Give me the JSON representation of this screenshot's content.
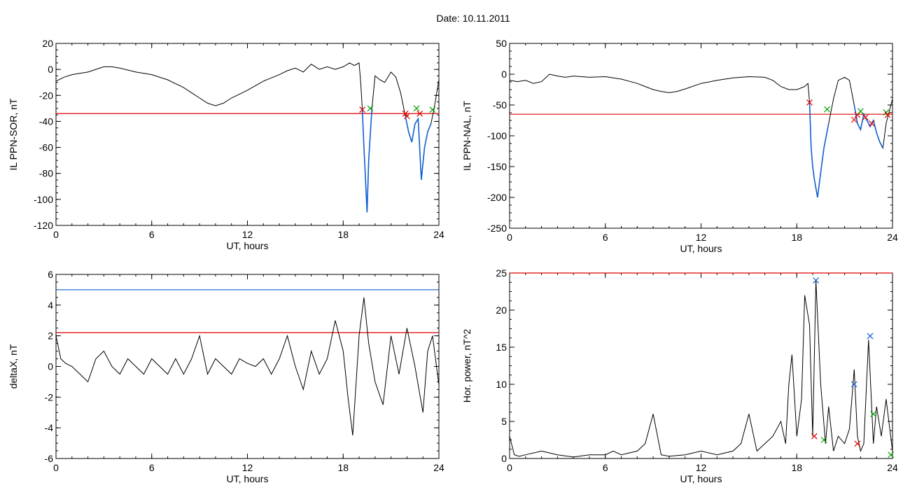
{
  "header": {
    "date_label": "Date:  10.11.2011"
  },
  "chart_data": [
    {
      "type": "line",
      "id": "sor",
      "xlabel": "UT, hours",
      "ylabel": "IL PPN-SOR, nT",
      "xlim": [
        0,
        24
      ],
      "ylim": [
        -120,
        20
      ],
      "xticks": [
        0,
        6,
        12,
        18,
        24
      ],
      "yticks": [
        -120,
        -100,
        -80,
        -60,
        -40,
        -20,
        0,
        20
      ],
      "threshold_lines": [
        {
          "y": -34,
          "color": "#e00000"
        }
      ],
      "series": [
        {
          "color": "#000000",
          "x": [
            0,
            0.5,
            1,
            1.5,
            2,
            2.5,
            3,
            3.5,
            4,
            5,
            6,
            7,
            8,
            8.5,
            9,
            9.5,
            10,
            10.5,
            11,
            12,
            13,
            14,
            14.5,
            15,
            15.5,
            16,
            16.5,
            17,
            17.5,
            18,
            18.4,
            18.7,
            19,
            19.1,
            19.2,
            19.3,
            19.4,
            19.5,
            19.6,
            19.8,
            20,
            20.3,
            20.6,
            21,
            21.3,
            21.6,
            21.9,
            22.1,
            22.3,
            22.5,
            22.7,
            22.9,
            23.1,
            23.3,
            23.5,
            23.7,
            24
          ],
          "values": [
            -9,
            -6,
            -4,
            -3,
            -2,
            0,
            2,
            2,
            1,
            -2,
            -4,
            -8,
            -14,
            -18,
            -22,
            -26,
            -28,
            -26,
            -22,
            -16,
            -9,
            -4,
            -1,
            1,
            -2,
            4,
            0,
            2,
            0,
            2,
            5,
            3,
            5,
            -10,
            -31,
            -60,
            -85,
            -110,
            -70,
            -30,
            -5,
            -8,
            -10,
            -2,
            -6,
            -18,
            -36,
            -48,
            -56,
            -42,
            -38,
            -85,
            -60,
            -48,
            -42,
            -30,
            -8
          ]
        }
      ],
      "highlight_segments": [
        {
          "color": "#1060d0",
          "x": [
            19.2,
            19.3,
            19.4,
            19.5,
            19.6,
            19.8
          ],
          "values": [
            -31,
            -60,
            -85,
            -110,
            -70,
            -30
          ]
        },
        {
          "color": "#1060d0",
          "x": [
            21.9,
            22.1,
            22.3,
            22.5,
            22.7,
            22.9,
            23.1,
            23.3,
            23.5
          ],
          "values": [
            -36,
            -48,
            -56,
            -42,
            -38,
            -85,
            -60,
            -48,
            -42
          ]
        }
      ],
      "markers": [
        {
          "x": 19.2,
          "y": -31,
          "color": "#e00000"
        },
        {
          "x": 19.7,
          "y": -30,
          "color": "#00a000"
        },
        {
          "x": 21.9,
          "y": -34,
          "color": "#e00000"
        },
        {
          "x": 22.0,
          "y": -36,
          "color": "#e00000"
        },
        {
          "x": 22.6,
          "y": -30,
          "color": "#00a000"
        },
        {
          "x": 22.8,
          "y": -34,
          "color": "#e00000"
        },
        {
          "x": 23.6,
          "y": -31,
          "color": "#00a000"
        }
      ]
    },
    {
      "type": "line",
      "id": "nal",
      "xlabel": "UT, hours",
      "ylabel": "IL PPN-NAL, nT",
      "xlim": [
        0,
        24
      ],
      "ylim": [
        -250,
        50
      ],
      "xticks": [
        0,
        6,
        12,
        18,
        24
      ],
      "yticks": [
        -250,
        -200,
        -150,
        -100,
        -50,
        0,
        50
      ],
      "threshold_lines": [
        {
          "y": -65,
          "color": "#e00000"
        }
      ],
      "series": [
        {
          "color": "#000000",
          "x": [
            0,
            0.5,
            1,
            1.5,
            2,
            2.5,
            3,
            3.5,
            4,
            5,
            6,
            7,
            8,
            8.5,
            9,
            9.5,
            10,
            10.5,
            11,
            12,
            13,
            14,
            15,
            16,
            16.5,
            17,
            17.5,
            18,
            18.5,
            18.7,
            18.8,
            18.9,
            19,
            19.1,
            19.3,
            19.5,
            19.7,
            20,
            20.3,
            20.6,
            21,
            21.3,
            21.6,
            21.8,
            22,
            22.2,
            22.4,
            22.6,
            22.8,
            23,
            23.2,
            23.4,
            23.6,
            23.8,
            24
          ],
          "values": [
            -10,
            -12,
            -10,
            -15,
            -12,
            0,
            -3,
            -5,
            -3,
            -5,
            -4,
            -8,
            -15,
            -20,
            -25,
            -28,
            -30,
            -28,
            -24,
            -15,
            -10,
            -6,
            -4,
            -5,
            -10,
            -20,
            -25,
            -25,
            -20,
            -15,
            -45,
            -120,
            -150,
            -170,
            -200,
            -160,
            -120,
            -80,
            -40,
            -10,
            -5,
            -10,
            -50,
            -80,
            -90,
            -65,
            -75,
            -85,
            -75,
            -95,
            -110,
            -120,
            -80,
            -60,
            -40
          ]
        }
      ],
      "highlight_segments": [
        {
          "color": "#1060d0",
          "x": [
            18.8,
            18.9,
            19,
            19.1,
            19.3,
            19.5,
            19.7,
            20
          ],
          "values": [
            -45,
            -120,
            -150,
            -170,
            -200,
            -160,
            -120,
            -80
          ]
        },
        {
          "color": "#1060d0",
          "x": [
            21.6,
            21.8,
            22,
            22.2,
            22.4,
            22.6,
            22.8,
            23,
            23.2,
            23.4
          ],
          "values": [
            -50,
            -80,
            -90,
            -65,
            -75,
            -85,
            -75,
            -95,
            -110,
            -120
          ]
        }
      ],
      "markers": [
        {
          "x": 18.8,
          "y": -46,
          "color": "#e00000"
        },
        {
          "x": 19.9,
          "y": -57,
          "color": "#00a000"
        },
        {
          "x": 21.6,
          "y": -74,
          "color": "#e00000"
        },
        {
          "x": 21.8,
          "y": -66,
          "color": "#e00000"
        },
        {
          "x": 22.0,
          "y": -60,
          "color": "#00a000"
        },
        {
          "x": 22.3,
          "y": -70,
          "color": "#e00000"
        },
        {
          "x": 22.7,
          "y": -80,
          "color": "#e00000"
        },
        {
          "x": 23.6,
          "y": -62,
          "color": "#00a000"
        },
        {
          "x": 23.7,
          "y": -66,
          "color": "#e00000"
        }
      ]
    },
    {
      "type": "line",
      "id": "deltax",
      "xlabel": "UT, hours",
      "ylabel": "deltaX, nT",
      "xlim": [
        0,
        24
      ],
      "ylim": [
        -6,
        6
      ],
      "xticks": [
        0,
        6,
        12,
        18,
        24
      ],
      "yticks": [
        -6,
        -4,
        -2,
        0,
        2,
        4,
        6
      ],
      "threshold_lines": [
        {
          "y": 5.0,
          "color": "#1060d0"
        },
        {
          "y": 2.2,
          "color": "#e00000"
        }
      ],
      "series": [
        {
          "color": "#000000",
          "x": [
            0,
            0.3,
            0.6,
            1,
            1.5,
            2,
            2.5,
            3,
            3.5,
            4,
            4.5,
            5,
            5.5,
            6,
            6.5,
            7,
            7.5,
            8,
            8.5,
            9,
            9.5,
            10,
            10.5,
            11,
            11.5,
            12,
            12.5,
            13,
            13.5,
            14,
            14.5,
            15,
            15.5,
            16,
            16.5,
            17,
            17.5,
            18,
            18.3,
            18.6,
            19,
            19.3,
            19.6,
            20,
            20.5,
            21,
            21.5,
            22,
            22.5,
            23,
            23.3,
            23.6,
            24
          ],
          "values": [
            2,
            0.5,
            0.2,
            0,
            -0.5,
            -1,
            0.5,
            1,
            0,
            -0.5,
            0.5,
            0,
            -0.5,
            0.5,
            0,
            -0.5,
            0.5,
            -0.5,
            0.5,
            2,
            -0.5,
            0.5,
            0,
            -0.5,
            0.5,
            0.2,
            0,
            0.5,
            -0.5,
            0.5,
            2,
            0,
            -1.5,
            1,
            -0.5,
            0.5,
            3,
            1,
            -2,
            -4.5,
            2,
            4.5,
            1.5,
            -1,
            -2.5,
            2,
            -0.5,
            2.5,
            0,
            -3,
            1,
            2,
            -1.2
          ]
        }
      ],
      "markers": []
    },
    {
      "type": "line",
      "id": "power",
      "xlabel": "UT, hours",
      "ylabel": "Hor. power, nT^2",
      "xlim": [
        0,
        24
      ],
      "ylim": [
        0,
        25
      ],
      "xticks": [
        0,
        6,
        12,
        18,
        24
      ],
      "yticks": [
        0,
        5,
        10,
        15,
        20,
        25
      ],
      "threshold_lines": [
        {
          "y": 25,
          "color": "#e00000"
        }
      ],
      "series": [
        {
          "color": "#000000",
          "x": [
            0,
            0.3,
            0.6,
            1,
            2,
            3,
            4,
            5,
            6,
            6.5,
            7,
            8,
            8.5,
            9,
            9.5,
            10,
            11,
            12,
            13,
            14,
            14.5,
            15,
            15.5,
            16,
            16.5,
            17,
            17.3,
            17.5,
            17.7,
            18,
            18.3,
            18.5,
            18.8,
            19,
            19.2,
            19.5,
            19.8,
            20,
            20.3,
            20.6,
            21,
            21.3,
            21.6,
            21.8,
            22,
            22.2,
            22.5,
            22.8,
            23,
            23.3,
            23.6,
            24
          ],
          "values": [
            3,
            0.5,
            0.3,
            0.5,
            1,
            0.5,
            0.2,
            0.5,
            0.5,
            1,
            0.5,
            1,
            2,
            6,
            0.5,
            0.3,
            0.5,
            1,
            0.5,
            1,
            2,
            6,
            1,
            2,
            3,
            5,
            2,
            10,
            14,
            3,
            8,
            22,
            18,
            3,
            24,
            10,
            2,
            7,
            1,
            3,
            2,
            4,
            12,
            3,
            1,
            2,
            16,
            2,
            7,
            3,
            8,
            1
          ]
        }
      ],
      "markers": [
        {
          "x": 19.2,
          "y": 24,
          "color": "#1060d0"
        },
        {
          "x": 21.6,
          "y": 10,
          "color": "#1060d0"
        },
        {
          "x": 22.6,
          "y": 16.5,
          "color": "#1060d0"
        },
        {
          "x": 19.1,
          "y": 3,
          "color": "#e00000"
        },
        {
          "x": 21.8,
          "y": 2,
          "color": "#e00000"
        },
        {
          "x": 19.7,
          "y": 2.5,
          "color": "#00a000"
        },
        {
          "x": 22.8,
          "y": 6,
          "color": "#00a000"
        },
        {
          "x": 23.9,
          "y": 0.5,
          "color": "#00a000"
        }
      ]
    }
  ]
}
